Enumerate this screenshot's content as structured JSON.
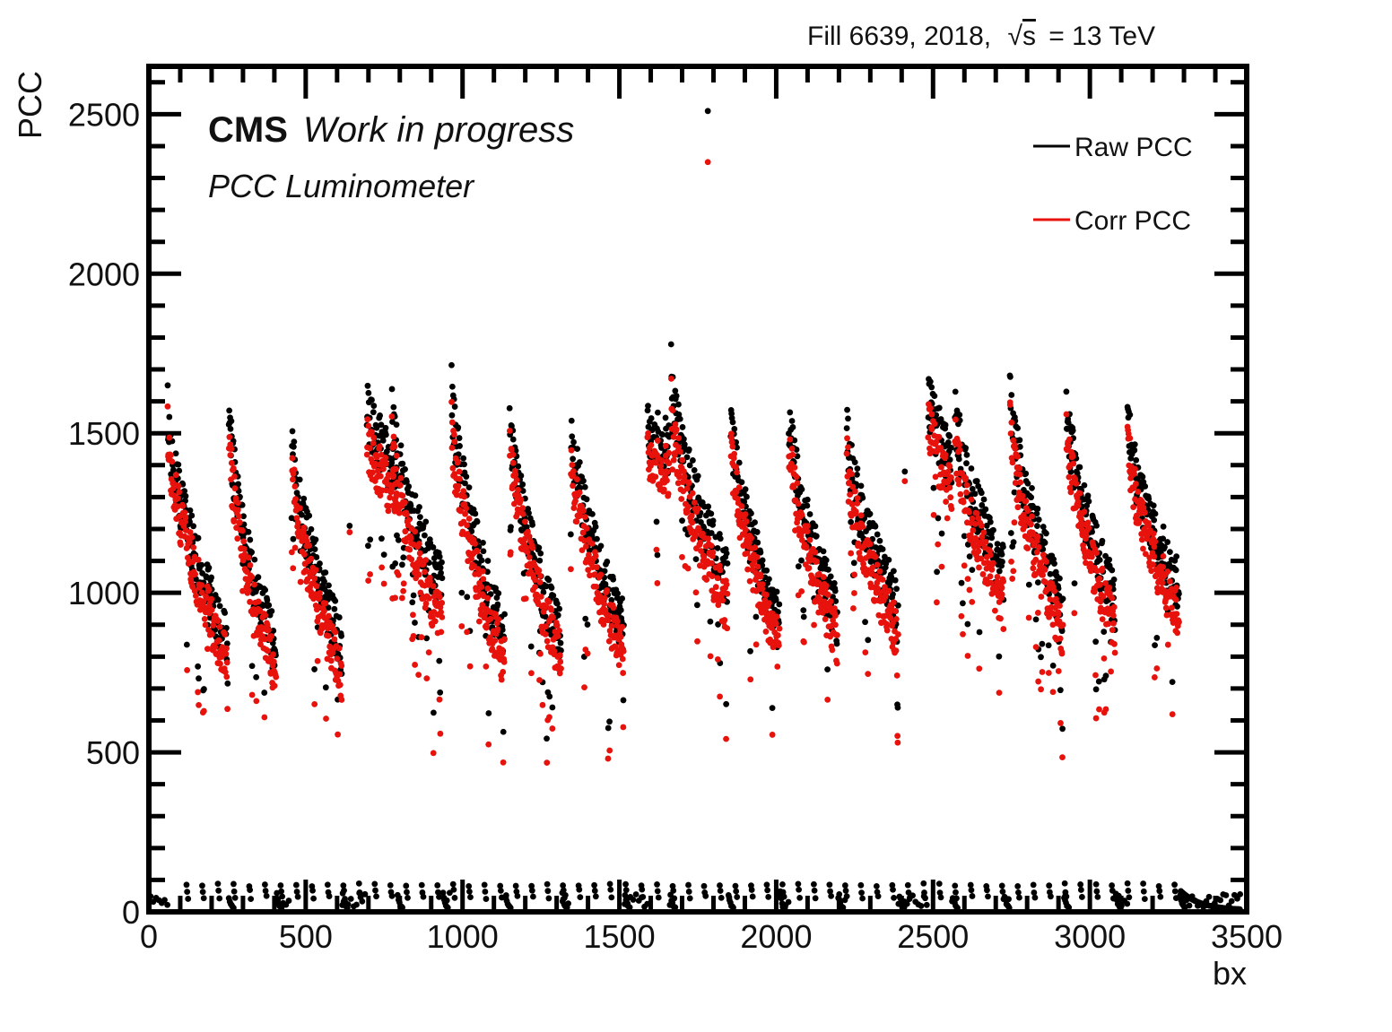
{
  "header": {
    "fill_text": "Fill 6639,  2018,",
    "sqrt_symbol": "√",
    "energy_var": "s",
    "energy_text": "= 13 TeV"
  },
  "labels": {
    "experiment": "CMS",
    "status": "Work in progress",
    "detector": "PCC Luminometer"
  },
  "chart_data": {
    "type": "scatter",
    "title": "",
    "xlabel": "bx",
    "ylabel": "PCC",
    "xlim": [
      0,
      3500
    ],
    "ylim": [
      0,
      2650
    ],
    "x_ticks": [
      0,
      500,
      1000,
      1500,
      2000,
      2500,
      3000,
      3500
    ],
    "x_tick_labels": [
      "0",
      "500",
      "1000",
      "1500",
      "2000",
      "2500",
      "3000",
      "3500"
    ],
    "y_ticks": [
      0,
      500,
      1000,
      1500,
      2000,
      2500
    ],
    "y_tick_labels": [
      "0",
      "500",
      "1000",
      "1500",
      "2000",
      "2500"
    ],
    "grid": false,
    "legend_position": "top-right",
    "legend": [
      {
        "name": "Raw PCC",
        "color": "#000000"
      },
      {
        "name": "Corr PCC",
        "color": "#e8120c"
      }
    ],
    "trains": [
      {
        "start": 60,
        "length": 192,
        "raw_peak": 1590,
        "raw_tail": 840,
        "corr_peak": 1530,
        "corr_tail": 780
      },
      {
        "start": 255,
        "length": 150,
        "raw_peak": 1580,
        "raw_tail": 820,
        "corr_peak": 1500,
        "corr_tail": 750
      },
      {
        "start": 455,
        "length": 160,
        "raw_peak": 1530,
        "raw_tail": 830,
        "corr_peak": 1450,
        "corr_tail": 740
      },
      {
        "start": 695,
        "length": 95,
        "raw_peak": 1600,
        "raw_tail": 1380,
        "corr_peak": 1500,
        "corr_tail": 1300
      },
      {
        "start": 775,
        "length": 160,
        "raw_peak": 1580,
        "raw_tail": 1020,
        "corr_peak": 1500,
        "corr_tail": 900
      },
      {
        "start": 965,
        "length": 170,
        "raw_peak": 1660,
        "raw_tail": 850,
        "corr_peak": 1550,
        "corr_tail": 780
      },
      {
        "start": 1150,
        "length": 165,
        "raw_peak": 1570,
        "raw_tail": 850,
        "corr_peak": 1500,
        "corr_tail": 790
      },
      {
        "start": 1345,
        "length": 170,
        "raw_peak": 1560,
        "raw_tail": 880,
        "corr_peak": 1470,
        "corr_tail": 800
      },
      {
        "start": 1590,
        "length": 70,
        "raw_peak": 1530,
        "raw_tail": 1460,
        "corr_peak": 1450,
        "corr_tail": 1380
      },
      {
        "start": 1665,
        "length": 180,
        "raw_peak": 1700,
        "raw_tail": 1040,
        "corr_peak": 1600,
        "corr_tail": 950
      },
      {
        "start": 1855,
        "length": 155,
        "raw_peak": 1570,
        "raw_tail": 900,
        "corr_peak": 1500,
        "corr_tail": 830
      },
      {
        "start": 2040,
        "length": 155,
        "raw_peak": 1580,
        "raw_tail": 920,
        "corr_peak": 1500,
        "corr_tail": 850
      },
      {
        "start": 2225,
        "length": 165,
        "raw_peak": 1520,
        "raw_tail": 950,
        "corr_peak": 1440,
        "corr_tail": 860
      },
      {
        "start": 2485,
        "length": 75,
        "raw_peak": 1620,
        "raw_tail": 1420,
        "corr_peak": 1550,
        "corr_tail": 1330
      },
      {
        "start": 2570,
        "length": 155,
        "raw_peak": 1600,
        "raw_tail": 1060,
        "corr_peak": 1520,
        "corr_tail": 960
      },
      {
        "start": 2745,
        "length": 170,
        "raw_peak": 1640,
        "raw_tail": 960,
        "corr_peak": 1560,
        "corr_tail": 880
      },
      {
        "start": 2925,
        "length": 155,
        "raw_peak": 1620,
        "raw_tail": 970,
        "corr_peak": 1550,
        "corr_tail": 890
      },
      {
        "start": 3120,
        "length": 165,
        "raw_peak": 1560,
        "raw_tail": 1010,
        "corr_peak": 1500,
        "corr_tail": 920
      }
    ],
    "outliers": [
      {
        "series": "Raw PCC",
        "x": 1782,
        "y": 2510
      },
      {
        "series": "Corr PCC",
        "x": 1782,
        "y": 2350
      },
      {
        "series": "Raw PCC",
        "x": 2410,
        "y": 1380
      },
      {
        "series": "Corr PCC",
        "x": 2410,
        "y": 1350
      },
      {
        "series": "Raw PCC",
        "x": 640,
        "y": 1210
      },
      {
        "series": "Corr PCC",
        "x": 640,
        "y": 1190
      }
    ],
    "afterglow_level": [
      10,
      100
    ]
  }
}
